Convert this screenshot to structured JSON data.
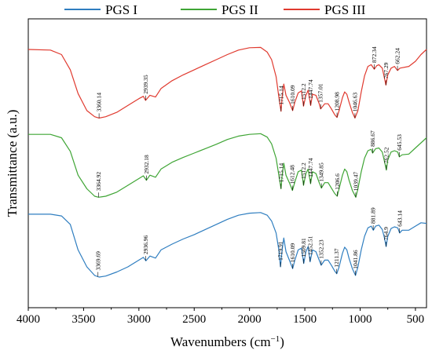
{
  "chart_data": {
    "type": "line",
    "xlabel": "Wavenumbers (cm",
    "xlabel_sup": "−1",
    "xlabel_suffix": ")",
    "ylabel": "Transmittance (a.u.)",
    "xlim": [
      4000,
      400
    ],
    "x_reversed": true,
    "xticks": [
      4000,
      3500,
      3000,
      2500,
      2000,
      1500,
      1000,
      500
    ],
    "legend_position": "top",
    "series": [
      {
        "name": "PGS I",
        "color": "#2f7ec0",
        "points": [
          [
            4000,
            0.575
          ],
          [
            3800,
            0.575
          ],
          [
            3700,
            0.57
          ],
          [
            3620,
            0.545
          ],
          [
            3550,
            0.47
          ],
          [
            3470,
            0.42
          ],
          [
            3400,
            0.395
          ],
          [
            3360,
            0.39
          ],
          [
            3300,
            0.393
          ],
          [
            3200,
            0.405
          ],
          [
            3100,
            0.42
          ],
          [
            3000,
            0.44
          ],
          [
            2960,
            0.448
          ],
          [
            2936,
            0.438
          ],
          [
            2900,
            0.452
          ],
          [
            2850,
            0.446
          ],
          [
            2800,
            0.47
          ],
          [
            2700,
            0.487
          ],
          [
            2600,
            0.502
          ],
          [
            2500,
            0.515
          ],
          [
            2400,
            0.53
          ],
          [
            2300,
            0.545
          ],
          [
            2200,
            0.56
          ],
          [
            2100,
            0.572
          ],
          [
            2000,
            0.578
          ],
          [
            1900,
            0.58
          ],
          [
            1840,
            0.572
          ],
          [
            1800,
            0.555
          ],
          [
            1760,
            0.52
          ],
          [
            1735,
            0.47
          ],
          [
            1720,
            0.42
          ],
          [
            1705,
            0.47
          ],
          [
            1690,
            0.505
          ],
          [
            1670,
            0.465
          ],
          [
            1640,
            0.44
          ],
          [
            1610,
            0.415
          ],
          [
            1590,
            0.44
          ],
          [
            1560,
            0.47
          ],
          [
            1530,
            0.475
          ],
          [
            1510,
            0.43
          ],
          [
            1490,
            0.465
          ],
          [
            1470,
            0.48
          ],
          [
            1452,
            0.435
          ],
          [
            1430,
            0.47
          ],
          [
            1400,
            0.465
          ],
          [
            1370,
            0.44
          ],
          [
            1352,
            0.425
          ],
          [
            1320,
            0.44
          ],
          [
            1290,
            0.44
          ],
          [
            1260,
            0.425
          ],
          [
            1230,
            0.408
          ],
          [
            1211,
            0.4
          ],
          [
            1190,
            0.42
          ],
          [
            1160,
            0.46
          ],
          [
            1140,
            0.478
          ],
          [
            1120,
            0.47
          ],
          [
            1100,
            0.445
          ],
          [
            1070,
            0.415
          ],
          [
            1042,
            0.395
          ],
          [
            1020,
            0.42
          ],
          [
            990,
            0.47
          ],
          [
            960,
            0.51
          ],
          [
            930,
            0.535
          ],
          [
            900,
            0.54
          ],
          [
            881,
            0.528
          ],
          [
            860,
            0.54
          ],
          [
            830,
            0.543
          ],
          [
            800,
            0.53
          ],
          [
            780,
            0.505
          ],
          [
            765,
            0.48
          ],
          [
            750,
            0.51
          ],
          [
            720,
            0.533
          ],
          [
            690,
            0.538
          ],
          [
            660,
            0.535
          ],
          [
            643,
            0.52
          ],
          [
            620,
            0.528
          ],
          [
            560,
            0.528
          ],
          [
            500,
            0.54
          ],
          [
            450,
            0.55
          ],
          [
            400,
            0.548
          ]
        ]
      },
      {
        "name": "PGS II",
        "color": "#3fa535",
        "points": [
          [
            4000,
            0.81
          ],
          [
            3800,
            0.81
          ],
          [
            3700,
            0.8
          ],
          [
            3620,
            0.76
          ],
          [
            3550,
            0.69
          ],
          [
            3470,
            0.65
          ],
          [
            3400,
            0.628
          ],
          [
            3364,
            0.625
          ],
          [
            3300,
            0.628
          ],
          [
            3200,
            0.64
          ],
          [
            3100,
            0.66
          ],
          [
            3000,
            0.68
          ],
          [
            2960,
            0.688
          ],
          [
            2932,
            0.675
          ],
          [
            2900,
            0.69
          ],
          [
            2850,
            0.684
          ],
          [
            2800,
            0.708
          ],
          [
            2700,
            0.728
          ],
          [
            2600,
            0.742
          ],
          [
            2500,
            0.755
          ],
          [
            2400,
            0.768
          ],
          [
            2300,
            0.781
          ],
          [
            2200,
            0.795
          ],
          [
            2100,
            0.805
          ],
          [
            2000,
            0.81
          ],
          [
            1900,
            0.812
          ],
          [
            1840,
            0.802
          ],
          [
            1800,
            0.782
          ],
          [
            1760,
            0.74
          ],
          [
            1735,
            0.69
          ],
          [
            1715,
            0.65
          ],
          [
            1705,
            0.69
          ],
          [
            1690,
            0.725
          ],
          [
            1670,
            0.69
          ],
          [
            1640,
            0.668
          ],
          [
            1612,
            0.645
          ],
          [
            1590,
            0.67
          ],
          [
            1560,
            0.7
          ],
          [
            1530,
            0.705
          ],
          [
            1512,
            0.66
          ],
          [
            1490,
            0.695
          ],
          [
            1470,
            0.708
          ],
          [
            1448,
            0.665
          ],
          [
            1430,
            0.7
          ],
          [
            1400,
            0.695
          ],
          [
            1370,
            0.668
          ],
          [
            1350,
            0.652
          ],
          [
            1320,
            0.668
          ],
          [
            1290,
            0.668
          ],
          [
            1260,
            0.652
          ],
          [
            1230,
            0.636
          ],
          [
            1207,
            0.628
          ],
          [
            1190,
            0.65
          ],
          [
            1160,
            0.69
          ],
          [
            1140,
            0.708
          ],
          [
            1120,
            0.7
          ],
          [
            1100,
            0.675
          ],
          [
            1070,
            0.645
          ],
          [
            1039,
            0.625
          ],
          [
            1020,
            0.65
          ],
          [
            990,
            0.7
          ],
          [
            960,
            0.74
          ],
          [
            930,
            0.762
          ],
          [
            900,
            0.766
          ],
          [
            887,
            0.755
          ],
          [
            860,
            0.768
          ],
          [
            830,
            0.77
          ],
          [
            800,
            0.758
          ],
          [
            780,
            0.73
          ],
          [
            763,
            0.705
          ],
          [
            750,
            0.735
          ],
          [
            720,
            0.758
          ],
          [
            690,
            0.762
          ],
          [
            660,
            0.758
          ],
          [
            646,
            0.744
          ],
          [
            620,
            0.75
          ],
          [
            560,
            0.752
          ],
          [
            500,
            0.77
          ],
          [
            450,
            0.785
          ],
          [
            400,
            0.8
          ]
        ]
      },
      {
        "name": "PGS III",
        "color": "#e03a2f",
        "points": [
          [
            4000,
            1.06
          ],
          [
            3800,
            1.058
          ],
          [
            3700,
            1.045
          ],
          [
            3620,
            1.0
          ],
          [
            3550,
            0.93
          ],
          [
            3470,
            0.88
          ],
          [
            3400,
            0.862
          ],
          [
            3360,
            0.858
          ],
          [
            3300,
            0.862
          ],
          [
            3200,
            0.875
          ],
          [
            3100,
            0.895
          ],
          [
            3000,
            0.915
          ],
          [
            2960,
            0.922
          ],
          [
            2940,
            0.91
          ],
          [
            2900,
            0.925
          ],
          [
            2850,
            0.92
          ],
          [
            2800,
            0.945
          ],
          [
            2700,
            0.968
          ],
          [
            2600,
            0.985
          ],
          [
            2500,
            1.0
          ],
          [
            2400,
            1.015
          ],
          [
            2300,
            1.03
          ],
          [
            2200,
            1.045
          ],
          [
            2100,
            1.058
          ],
          [
            2000,
            1.065
          ],
          [
            1900,
            1.066
          ],
          [
            1840,
            1.052
          ],
          [
            1800,
            1.03
          ],
          [
            1760,
            0.98
          ],
          [
            1735,
            0.92
          ],
          [
            1715,
            0.878
          ],
          [
            1705,
            0.92
          ],
          [
            1690,
            0.958
          ],
          [
            1670,
            0.925
          ],
          [
            1640,
            0.905
          ],
          [
            1610,
            0.88
          ],
          [
            1590,
            0.905
          ],
          [
            1560,
            0.932
          ],
          [
            1530,
            0.938
          ],
          [
            1512,
            0.893
          ],
          [
            1490,
            0.925
          ],
          [
            1470,
            0.94
          ],
          [
            1447,
            0.895
          ],
          [
            1430,
            0.928
          ],
          [
            1400,
            0.925
          ],
          [
            1370,
            0.9
          ],
          [
            1357,
            0.885
          ],
          [
            1320,
            0.9
          ],
          [
            1290,
            0.9
          ],
          [
            1260,
            0.885
          ],
          [
            1230,
            0.868
          ],
          [
            1209,
            0.86
          ],
          [
            1190,
            0.88
          ],
          [
            1160,
            0.918
          ],
          [
            1140,
            0.935
          ],
          [
            1120,
            0.928
          ],
          [
            1100,
            0.905
          ],
          [
            1070,
            0.875
          ],
          [
            1047,
            0.858
          ],
          [
            1020,
            0.88
          ],
          [
            990,
            0.935
          ],
          [
            960,
            0.982
          ],
          [
            930,
            1.01
          ],
          [
            900,
            1.015
          ],
          [
            872,
            1.002
          ],
          [
            850,
            1.012
          ],
          [
            830,
            1.015
          ],
          [
            800,
            1.005
          ],
          [
            780,
            0.975
          ],
          [
            767,
            0.955
          ],
          [
            750,
            0.985
          ],
          [
            720,
            1.005
          ],
          [
            690,
            1.01
          ],
          [
            662,
            0.998
          ],
          [
            640,
            1.005
          ],
          [
            560,
            1.01
          ],
          [
            500,
            1.025
          ],
          [
            450,
            1.045
          ],
          [
            400,
            1.06
          ]
        ]
      }
    ],
    "annotations": [
      {
        "text": "3369.69",
        "x": 3369.69,
        "series": 0
      },
      {
        "text": "2936.96",
        "x": 2936.96,
        "series": 0
      },
      {
        "text": "1719.91",
        "x": 1719.91,
        "series": 0
      },
      {
        "text": "1610.09",
        "x": 1610.09,
        "series": 0
      },
      {
        "text": "1509.81",
        "x": 1509.81,
        "series": 0
      },
      {
        "text": "1452.51",
        "x": 1452.51,
        "series": 0
      },
      {
        "text": "1352.23",
        "x": 1352.23,
        "series": 0
      },
      {
        "text": "1211.37",
        "x": 1211.37,
        "series": 0
      },
      {
        "text": "1041.86",
        "x": 1041.86,
        "series": 0
      },
      {
        "text": "881.89",
        "x": 881.89,
        "series": 0
      },
      {
        "text": "764.9",
        "x": 764.9,
        "series": 0
      },
      {
        "text": "643.14",
        "x": 643.14,
        "series": 0
      },
      {
        "text": "3364.92",
        "x": 3364.92,
        "series": 1
      },
      {
        "text": "2932.18",
        "x": 2932.18,
        "series": 1
      },
      {
        "text": "1715.14",
        "x": 1715.14,
        "series": 1
      },
      {
        "text": "1612.48",
        "x": 1612.48,
        "series": 1
      },
      {
        "text": "1512.2",
        "x": 1512.2,
        "series": 1
      },
      {
        "text": "1447.74",
        "x": 1447.74,
        "series": 1
      },
      {
        "text": "1349.85",
        "x": 1349.85,
        "series": 1
      },
      {
        "text": "1206.6",
        "x": 1206.6,
        "series": 1
      },
      {
        "text": "1039.47",
        "x": 1039.47,
        "series": 1
      },
      {
        "text": "886.67",
        "x": 886.67,
        "series": 1
      },
      {
        "text": "762.52",
        "x": 762.52,
        "series": 1
      },
      {
        "text": "645.53",
        "x": 645.53,
        "series": 1
      },
      {
        "text": "3360.14",
        "x": 3360.14,
        "series": 2
      },
      {
        "text": "2939.35",
        "x": 2939.35,
        "series": 2
      },
      {
        "text": "1715.14",
        "x": 1715.14,
        "series": 2
      },
      {
        "text": "1610.09",
        "x": 1610.09,
        "series": 2
      },
      {
        "text": "1512.2",
        "x": 1512.2,
        "series": 2
      },
      {
        "text": "1447.74",
        "x": 1447.74,
        "series": 2
      },
      {
        "text": "1357.01",
        "x": 1357.01,
        "series": 2
      },
      {
        "text": "1208.98",
        "x": 1208.98,
        "series": 2
      },
      {
        "text": "1046.63",
        "x": 1046.63,
        "series": 2
      },
      {
        "text": "872.34",
        "x": 872.34,
        "series": 2
      },
      {
        "text": "767.29",
        "x": 767.29,
        "series": 2
      },
      {
        "text": "662.24",
        "x": 662.24,
        "series": 2
      }
    ]
  }
}
